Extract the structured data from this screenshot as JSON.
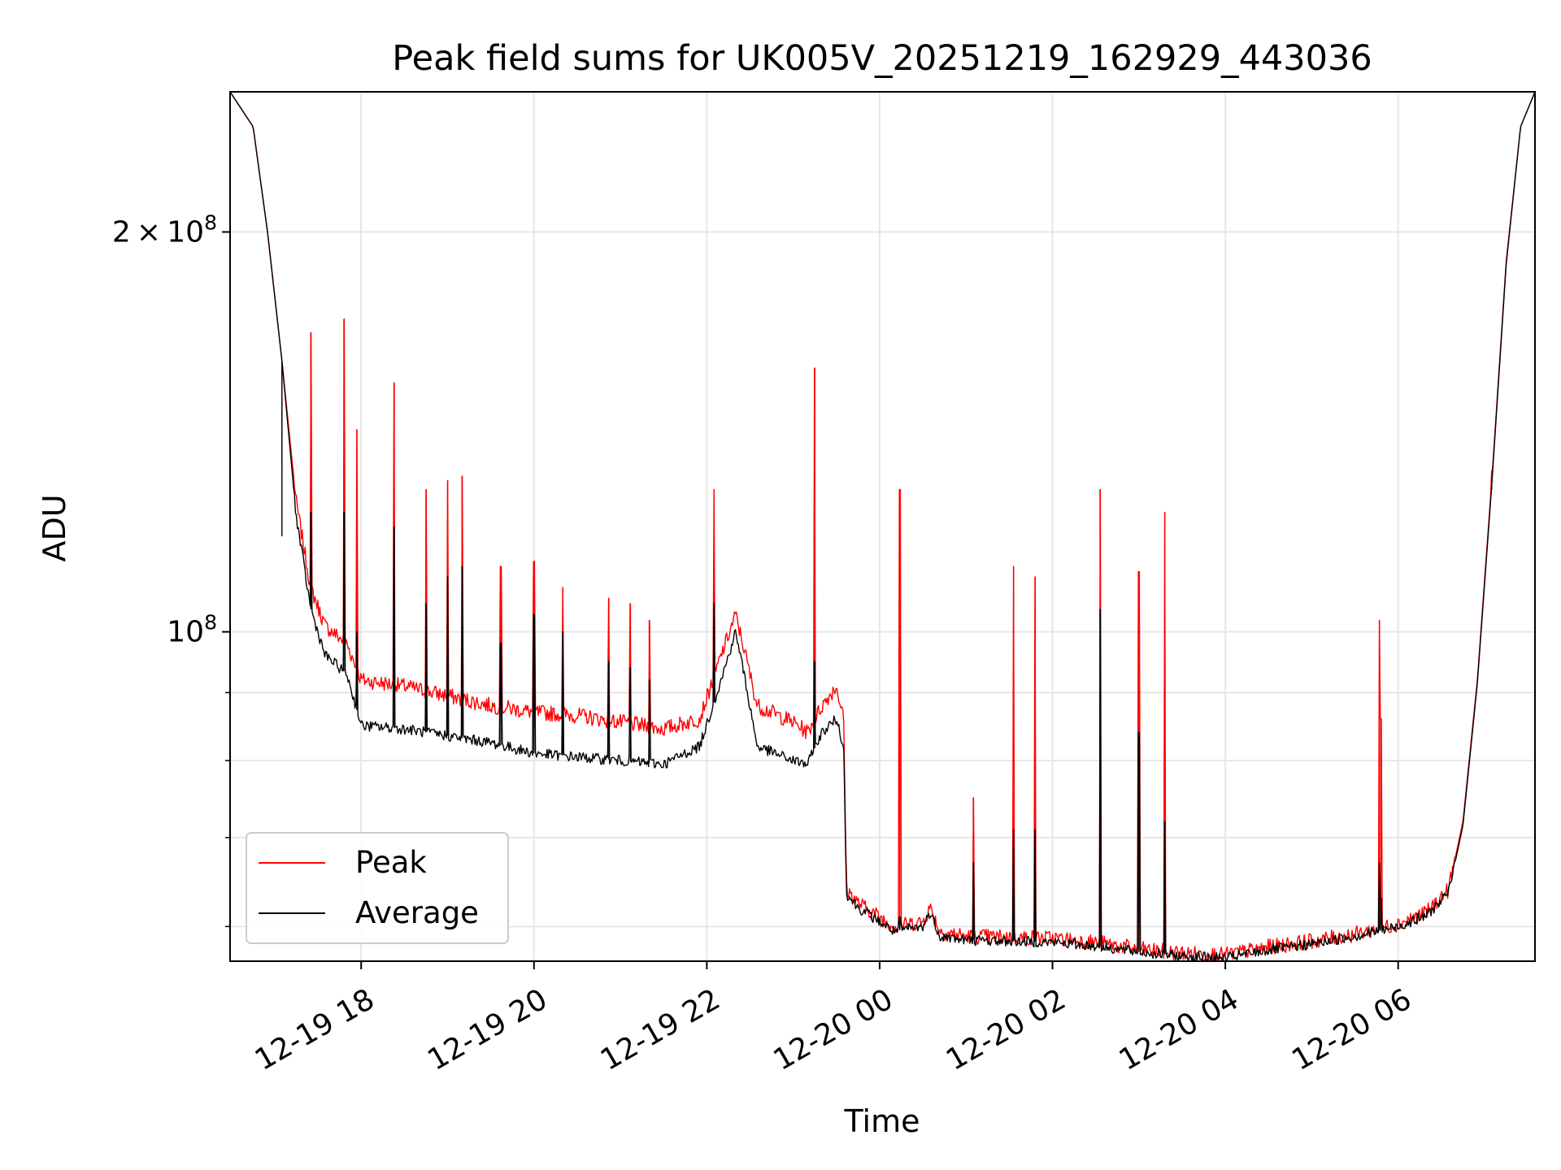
{
  "chart_data": {
    "type": "line",
    "title": "Peak field sums for UK005V_20251219_162929_443036",
    "xlabel": "Time",
    "ylabel": "ADU",
    "yscale": "log",
    "grid": true,
    "legend_position": "lower-left",
    "x_range": [
      "2025-12-19 16:29",
      "2025-12-20 07:35"
    ],
    "ylim": [
      56500000,
      255000000
    ],
    "x_ticks": [
      {
        "t": "2025-12-19 18:00",
        "label": "12-19 18"
      },
      {
        "t": "2025-12-19 20:00",
        "label": "12-19 20"
      },
      {
        "t": "2025-12-19 22:00",
        "label": "12-19 22"
      },
      {
        "t": "2025-12-20 00:00",
        "label": "12-20 00"
      },
      {
        "t": "2025-12-20 02:00",
        "label": "12-20 02"
      },
      {
        "t": "2025-12-20 04:00",
        "label": "12-20 04"
      },
      {
        "t": "2025-12-20 06:00",
        "label": "12-20 06"
      }
    ],
    "y_major_ticks": [
      {
        "value": 100000000,
        "base": "10",
        "exp": "8"
      },
      {
        "value": 200000000,
        "mant": "2",
        "base": "10",
        "exp": "8"
      }
    ],
    "y_minor_ticks": [
      60000000,
      70000000,
      80000000,
      90000000
    ],
    "series": [
      {
        "name": "Peak",
        "color": "#ff0000",
        "points": [
          [
            "2025-12-19 16:29",
            255000000
          ],
          [
            "2025-12-19 16:45",
            240000000
          ],
          [
            "2025-12-19 16:55",
            200000000
          ],
          [
            "2025-12-19 17:05",
            160000000
          ],
          [
            "2025-12-19 17:15",
            125000000
          ],
          [
            "2025-12-19 17:25",
            108000000
          ],
          [
            "2025-12-19 17:35",
            101000000
          ],
          [
            "2025-12-19 17:50",
            98000000
          ],
          [
            "2025-12-19 18:00",
            92000000
          ],
          [
            "2025-12-19 18:30",
            91000000
          ],
          [
            "2025-12-19 19:00",
            89500000
          ],
          [
            "2025-12-19 19:30",
            88000000
          ],
          [
            "2025-12-19 20:00",
            87000000
          ],
          [
            "2025-12-19 20:30",
            86500000
          ],
          [
            "2025-12-19 21:00",
            85500000
          ],
          [
            "2025-12-19 21:30",
            84500000
          ],
          [
            "2025-12-19 21:55",
            86000000
          ],
          [
            "2025-12-19 22:10",
            96000000
          ],
          [
            "2025-12-19 22:20",
            103000000
          ],
          [
            "2025-12-19 22:25",
            98000000
          ],
          [
            "2025-12-19 22:35",
            88000000
          ],
          [
            "2025-12-19 23:00",
            85500000
          ],
          [
            "2025-12-19 23:10",
            84000000
          ],
          [
            "2025-12-19 23:20",
            88000000
          ],
          [
            "2025-12-19 23:30",
            91000000
          ],
          [
            "2025-12-19 23:35",
            86000000
          ],
          [
            "2025-12-19 23:37",
            64000000
          ],
          [
            "2025-12-19 23:45",
            62500000
          ],
          [
            "2025-12-20 00:00",
            61000000
          ],
          [
            "2025-12-20 00:10",
            60000000
          ],
          [
            "2025-12-20 00:30",
            60500000
          ],
          [
            "2025-12-20 00:35",
            62000000
          ],
          [
            "2025-12-20 00:42",
            59500000
          ],
          [
            "2025-12-20 01:00",
            59000000
          ],
          [
            "2025-12-20 02:00",
            58800000
          ],
          [
            "2025-12-20 02:30",
            58400000
          ],
          [
            "2025-12-20 03:00",
            57700000
          ],
          [
            "2025-12-20 03:30",
            57300000
          ],
          [
            "2025-12-20 04:00",
            57100000
          ],
          [
            "2025-12-20 04:30",
            57900000
          ],
          [
            "2025-12-20 05:00",
            58500000
          ],
          [
            "2025-12-20 05:30",
            59200000
          ],
          [
            "2025-12-20 06:00",
            60300000
          ],
          [
            "2025-12-20 06:20",
            61500000
          ],
          [
            "2025-12-20 06:35",
            64000000
          ],
          [
            "2025-12-20 06:45",
            72000000
          ],
          [
            "2025-12-20 06:55",
            92000000
          ],
          [
            "2025-12-20 07:05",
            130000000
          ],
          [
            "2025-12-20 07:15",
            190000000
          ],
          [
            "2025-12-20 07:25",
            240000000
          ],
          [
            "2025-12-20 07:35",
            255000000
          ]
        ]
      },
      {
        "name": "Average",
        "color": "#000000",
        "points": [
          [
            "2025-12-19 16:29",
            255000000
          ],
          [
            "2025-12-19 16:45",
            240000000
          ],
          [
            "2025-12-19 16:55",
            200000000
          ],
          [
            "2025-12-19 17:05",
            160000000
          ],
          [
            "2025-12-19 17:15",
            122000000
          ],
          [
            "2025-12-19 17:25",
            104000000
          ],
          [
            "2025-12-19 17:35",
            96000000
          ],
          [
            "2025-12-19 17:50",
            93000000
          ],
          [
            "2025-12-19 18:00",
            85000000
          ],
          [
            "2025-12-19 18:30",
            84500000
          ],
          [
            "2025-12-19 19:00",
            83500000
          ],
          [
            "2025-12-19 19:30",
            82500000
          ],
          [
            "2025-12-19 20:00",
            81000000
          ],
          [
            "2025-12-19 20:30",
            80500000
          ],
          [
            "2025-12-19 21:00",
            80000000
          ],
          [
            "2025-12-19 21:30",
            79500000
          ],
          [
            "2025-12-19 21:55",
            82000000
          ],
          [
            "2025-12-19 22:10",
            92000000
          ],
          [
            "2025-12-19 22:20",
            100000000
          ],
          [
            "2025-12-19 22:25",
            94000000
          ],
          [
            "2025-12-19 22:35",
            82000000
          ],
          [
            "2025-12-19 23:00",
            80000000
          ],
          [
            "2025-12-19 23:10",
            79500000
          ],
          [
            "2025-12-19 23:20",
            84000000
          ],
          [
            "2025-12-19 23:30",
            86000000
          ],
          [
            "2025-12-19 23:35",
            82000000
          ],
          [
            "2025-12-19 23:37",
            63500000
          ],
          [
            "2025-12-19 23:45",
            62000000
          ],
          [
            "2025-12-20 00:00",
            60500000
          ],
          [
            "2025-12-20 00:10",
            59500000
          ],
          [
            "2025-12-20 00:30",
            60000000
          ],
          [
            "2025-12-20 00:35",
            61500000
          ],
          [
            "2025-12-20 00:42",
            59000000
          ],
          [
            "2025-12-20 01:00",
            58600000
          ],
          [
            "2025-12-20 02:00",
            58400000
          ],
          [
            "2025-12-20 02:30",
            58000000
          ],
          [
            "2025-12-20 03:00",
            57400000
          ],
          [
            "2025-12-20 03:30",
            57000000
          ],
          [
            "2025-12-20 04:00",
            56800000
          ],
          [
            "2025-12-20 04:30",
            57600000
          ],
          [
            "2025-12-20 05:00",
            58200000
          ],
          [
            "2025-12-20 05:30",
            59000000
          ],
          [
            "2025-12-20 06:00",
            60000000
          ],
          [
            "2025-12-20 06:20",
            61200000
          ],
          [
            "2025-12-20 06:35",
            63600000
          ],
          [
            "2025-12-20 06:45",
            71500000
          ],
          [
            "2025-12-20 06:55",
            91500000
          ],
          [
            "2025-12-20 07:05",
            129000000
          ],
          [
            "2025-12-20 07:15",
            189000000
          ],
          [
            "2025-12-20 07:25",
            240000000
          ],
          [
            "2025-12-20 07:35",
            255000000
          ]
        ]
      }
    ],
    "spikes": [
      {
        "t": "2025-12-19 17:05",
        "peak": 133000000,
        "average": 118000000
      },
      {
        "t": "2025-12-19 17:25",
        "peak": 168000000,
        "average": 123000000
      },
      {
        "t": "2025-12-19 17:48",
        "peak": 172000000,
        "average": 123000000
      },
      {
        "t": "2025-12-19 17:57",
        "peak": 142000000,
        "average": 100000000
      },
      {
        "t": "2025-12-19 18:23",
        "peak": 154000000,
        "average": 120000000
      },
      {
        "t": "2025-12-19 18:45",
        "peak": 128000000,
        "average": 105000000
      },
      {
        "t": "2025-12-19 19:00",
        "peak": 130000000,
        "average": 110000000
      },
      {
        "t": "2025-12-19 19:10",
        "peak": 131000000,
        "average": 112000000
      },
      {
        "t": "2025-12-19 19:37",
        "peak": 112000000,
        "average": 98000000
      },
      {
        "t": "2025-12-19 20:00",
        "peak": 113000000,
        "average": 103000000
      },
      {
        "t": "2025-12-19 20:20",
        "peak": 108000000,
        "average": 100000000
      },
      {
        "t": "2025-12-19 20:52",
        "peak": 106000000,
        "average": 95000000
      },
      {
        "t": "2025-12-19 21:07",
        "peak": 105000000,
        "average": 94000000
      },
      {
        "t": "2025-12-19 21:20",
        "peak": 102000000,
        "average": 92000000
      },
      {
        "t": "2025-12-19 22:05",
        "peak": 128000000,
        "average": 105000000
      },
      {
        "t": "2025-12-19 23:15",
        "peak": 158000000,
        "average": 95000000
      },
      {
        "t": "2025-12-20 00:14",
        "peak": 128000000,
        "average": 61000000
      },
      {
        "t": "2025-12-20 01:05",
        "peak": 75000000,
        "average": 67000000
      },
      {
        "t": "2025-12-20 01:33",
        "peak": 112000000,
        "average": 71000000
      },
      {
        "t": "2025-12-20 01:48",
        "peak": 110000000,
        "average": 71000000
      },
      {
        "t": "2025-12-20 02:33",
        "peak": 128000000,
        "average": 104000000
      },
      {
        "t": "2025-12-20 03:00",
        "peak": 111000000,
        "average": 84000000
      },
      {
        "t": "2025-12-20 03:18",
        "peak": 123000000,
        "average": 72000000
      },
      {
        "t": "2025-12-20 05:47",
        "peak": 102000000,
        "average": 67000000
      },
      {
        "t": "2025-12-20 05:48",
        "peak": 86000000,
        "average": 63000000
      },
      {
        "t": "2025-12-20 07:05",
        "peak": 132000000,
        "average": 128000000
      }
    ]
  },
  "legend": [
    {
      "label": "Peak",
      "color": "#ff0000"
    },
    {
      "label": "Average",
      "color": "#000000"
    }
  ]
}
